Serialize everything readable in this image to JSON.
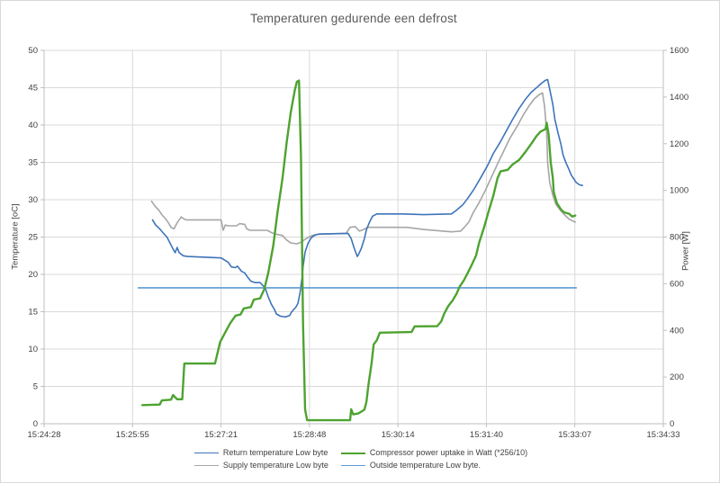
{
  "chart_data": {
    "type": "line",
    "title": "Temperaturen gedurende een defrost",
    "grid": true,
    "legend_position": "bottom",
    "x_axis": {
      "unit": "seconds after 15:24:28",
      "min": 0,
      "max": 605,
      "tick_labels": [
        "15:24:28",
        "15:25:55",
        "15:27:21",
        "15:28:48",
        "15:30:14",
        "15:31:40",
        "15:33:07",
        "15:34:33"
      ]
    },
    "y_left": {
      "label": "Temperature [oC]",
      "min": 0,
      "max": 50,
      "ticks": [
        0,
        5,
        10,
        15,
        20,
        25,
        30,
        35,
        40,
        45,
        50
      ]
    },
    "y_right": {
      "label": "Power [W]",
      "min": 0,
      "max": 1600,
      "ticks": [
        0,
        200,
        400,
        600,
        800,
        1000,
        1200,
        1400,
        1600
      ]
    },
    "style": {
      "grid_color": "#d9d9d9",
      "axis_color": "#bfbfbf",
      "text_color": "#404040",
      "title_color": "#595959"
    },
    "draw_order": [
      2,
      0,
      3,
      1
    ],
    "legend_order": [
      0,
      1,
      2,
      3
    ],
    "series": [
      {
        "name": "Return temperature Low byte",
        "axis": "left",
        "color": "#3e74ba",
        "width": 1.6,
        "points": [
          [
            106,
            27.3
          ],
          [
            109,
            26.6
          ],
          [
            113,
            26.1
          ],
          [
            116,
            25.6
          ],
          [
            120,
            25.0
          ],
          [
            123,
            24.2
          ],
          [
            126,
            23.4
          ],
          [
            128,
            22.9
          ],
          [
            130,
            23.6
          ],
          [
            132,
            22.9
          ],
          [
            136,
            22.5
          ],
          [
            140,
            22.4
          ],
          [
            173,
            22.2
          ],
          [
            180,
            21.6
          ],
          [
            183,
            21.0
          ],
          [
            187,
            20.9
          ],
          [
            189,
            21.1
          ],
          [
            193,
            20.4
          ],
          [
            196,
            20.2
          ],
          [
            199,
            19.6
          ],
          [
            202,
            19.1
          ],
          [
            206,
            18.9
          ],
          [
            211,
            18.9
          ],
          [
            216,
            18.2
          ],
          [
            219,
            17.0
          ],
          [
            222,
            16.0
          ],
          [
            225,
            15.3
          ],
          [
            227,
            14.7
          ],
          [
            231,
            14.4
          ],
          [
            236,
            14.3
          ],
          [
            240,
            14.5
          ],
          [
            242,
            15.0
          ],
          [
            246,
            15.6
          ],
          [
            248,
            16.1
          ],
          [
            250,
            17.5
          ],
          [
            252,
            19.5
          ],
          [
            253,
            21.0
          ],
          [
            255,
            23.0
          ],
          [
            258,
            24.2
          ],
          [
            261,
            24.9
          ],
          [
            264,
            25.2
          ],
          [
            268,
            25.4
          ],
          [
            297,
            25.5
          ],
          [
            300,
            24.8
          ],
          [
            303,
            23.5
          ],
          [
            306,
            22.4
          ],
          [
            307,
            22.6
          ],
          [
            310,
            23.5
          ],
          [
            313,
            24.8
          ],
          [
            315,
            26.0
          ],
          [
            318,
            27.0
          ],
          [
            321,
            27.8
          ],
          [
            325,
            28.1
          ],
          [
            350,
            28.1
          ],
          [
            371,
            28.0
          ],
          [
            398,
            28.1
          ],
          [
            402,
            28.5
          ],
          [
            409,
            29.3
          ],
          [
            414,
            30.2
          ],
          [
            420,
            31.4
          ],
          [
            426,
            32.8
          ],
          [
            433,
            34.5
          ],
          [
            439,
            36.2
          ],
          [
            446,
            37.8
          ],
          [
            452,
            39.3
          ],
          [
            458,
            40.8
          ],
          [
            464,
            42.2
          ],
          [
            470,
            43.4
          ],
          [
            476,
            44.4
          ],
          [
            482,
            45.1
          ],
          [
            486,
            45.6
          ],
          [
            490,
            46.0
          ],
          [
            492,
            46.1
          ],
          [
            494,
            44.8
          ],
          [
            497,
            42.8
          ],
          [
            499,
            40.8
          ],
          [
            502,
            39.0
          ],
          [
            505,
            37.4
          ],
          [
            507,
            36.0
          ],
          [
            510,
            34.9
          ],
          [
            513,
            34.0
          ],
          [
            515,
            33.3
          ],
          [
            518,
            32.7
          ],
          [
            520,
            32.3
          ],
          [
            523,
            32.0
          ],
          [
            526,
            31.9
          ]
        ]
      },
      {
        "name": "Compressor power uptake in Watt (*256/10)",
        "axis": "right",
        "color": "#4da32f",
        "width": 2.4,
        "points": [
          [
            96,
            80
          ],
          [
            113,
            82
          ],
          [
            115,
            100
          ],
          [
            124,
            103
          ],
          [
            126,
            123
          ],
          [
            130,
            105
          ],
          [
            135,
            105
          ],
          [
            137,
            258
          ],
          [
            167,
            258
          ],
          [
            172,
            350
          ],
          [
            178,
            400
          ],
          [
            182,
            432
          ],
          [
            187,
            463
          ],
          [
            192,
            468
          ],
          [
            195,
            494
          ],
          [
            202,
            500
          ],
          [
            205,
            532
          ],
          [
            211,
            537
          ],
          [
            215,
            575
          ],
          [
            219,
            645
          ],
          [
            224,
            765
          ],
          [
            228,
            905
          ],
          [
            233,
            1055
          ],
          [
            237,
            1205
          ],
          [
            241,
            1335
          ],
          [
            245,
            1430
          ],
          [
            247,
            1466
          ],
          [
            249,
            1471
          ],
          [
            251,
            1150
          ],
          [
            253,
            430
          ],
          [
            255,
            60
          ],
          [
            257,
            15
          ],
          [
            299,
            15
          ],
          [
            300,
            62
          ],
          [
            302,
            40
          ],
          [
            307,
            44
          ],
          [
            313,
            60
          ],
          [
            315,
            95
          ],
          [
            317,
            170
          ],
          [
            320,
            260
          ],
          [
            322,
            340
          ],
          [
            325,
            357
          ],
          [
            328,
            390
          ],
          [
            359,
            393
          ],
          [
            362,
            417
          ],
          [
            384,
            418
          ],
          [
            388,
            438
          ],
          [
            391,
            472
          ],
          [
            395,
            505
          ],
          [
            399,
            527
          ],
          [
            403,
            557
          ],
          [
            406,
            587
          ],
          [
            410,
            613
          ],
          [
            414,
            647
          ],
          [
            418,
            682
          ],
          [
            422,
            720
          ],
          [
            425,
            775
          ],
          [
            430,
            843
          ],
          [
            434,
            905
          ],
          [
            439,
            978
          ],
          [
            443,
            1052
          ],
          [
            446,
            1082
          ],
          [
            453,
            1088
          ],
          [
            458,
            1112
          ],
          [
            464,
            1130
          ],
          [
            470,
            1163
          ],
          [
            476,
            1200
          ],
          [
            481,
            1232
          ],
          [
            485,
            1252
          ],
          [
            490,
            1263
          ],
          [
            491,
            1290
          ],
          [
            493,
            1240
          ],
          [
            495,
            1120
          ],
          [
            497,
            1055
          ],
          [
            498,
            992
          ],
          [
            501,
            946
          ],
          [
            505,
            918
          ],
          [
            508,
            906
          ],
          [
            513,
            900
          ],
          [
            516,
            888
          ],
          [
            519,
            892
          ]
        ]
      },
      {
        "name": "Supply temperature Low byte",
        "axis": "left",
        "color": "#a6a6a6",
        "width": 1.6,
        "points": [
          [
            105,
            29.8
          ],
          [
            108,
            29.2
          ],
          [
            112,
            28.6
          ],
          [
            115,
            28.0
          ],
          [
            119,
            27.4
          ],
          [
            122,
            26.8
          ],
          [
            124,
            26.3
          ],
          [
            127,
            26.1
          ],
          [
            130,
            26.9
          ],
          [
            134,
            27.7
          ],
          [
            137,
            27.4
          ],
          [
            139,
            27.3
          ],
          [
            173,
            27.3
          ],
          [
            175,
            25.9
          ],
          [
            177,
            26.6
          ],
          [
            180,
            26.5
          ],
          [
            188,
            26.5
          ],
          [
            191,
            26.8
          ],
          [
            196,
            26.7
          ],
          [
            198,
            26.1
          ],
          [
            201,
            25.9
          ],
          [
            218,
            25.9
          ],
          [
            222,
            25.6
          ],
          [
            226,
            25.4
          ],
          [
            233,
            25.2
          ],
          [
            237,
            24.6
          ],
          [
            241,
            24.2
          ],
          [
            247,
            24.1
          ],
          [
            251,
            24.3
          ],
          [
            255,
            24.7
          ],
          [
            260,
            25.1
          ],
          [
            264,
            25.3
          ],
          [
            270,
            25.4
          ],
          [
            295,
            25.5
          ],
          [
            299,
            26.3
          ],
          [
            304,
            26.4
          ],
          [
            308,
            25.8
          ],
          [
            312,
            26.0
          ],
          [
            316,
            26.3
          ],
          [
            354,
            26.3
          ],
          [
            372,
            26.0
          ],
          [
            398,
            25.7
          ],
          [
            407,
            25.8
          ],
          [
            410,
            26.2
          ],
          [
            415,
            27.0
          ],
          [
            419,
            28.2
          ],
          [
            425,
            29.6
          ],
          [
            431,
            31.2
          ],
          [
            437,
            33.0
          ],
          [
            443,
            34.8
          ],
          [
            449,
            36.5
          ],
          [
            455,
            38.2
          ],
          [
            462,
            39.8
          ],
          [
            468,
            41.3
          ],
          [
            474,
            42.6
          ],
          [
            479,
            43.5
          ],
          [
            484,
            44.1
          ],
          [
            487,
            44.3
          ],
          [
            489,
            42.5
          ],
          [
            491,
            39.0
          ],
          [
            492,
            35.0
          ],
          [
            494,
            32.3
          ],
          [
            497,
            30.6
          ],
          [
            500,
            29.4
          ],
          [
            505,
            28.5
          ],
          [
            509,
            27.9
          ],
          [
            513,
            27.4
          ],
          [
            519,
            27.0
          ]
        ]
      },
      {
        "name": "Outside temperature Low byte.",
        "axis": "left",
        "color": "#5b9bd5",
        "width": 1.6,
        "points": [
          [
            92,
            18.2
          ],
          [
            520,
            18.2
          ]
        ]
      }
    ]
  }
}
